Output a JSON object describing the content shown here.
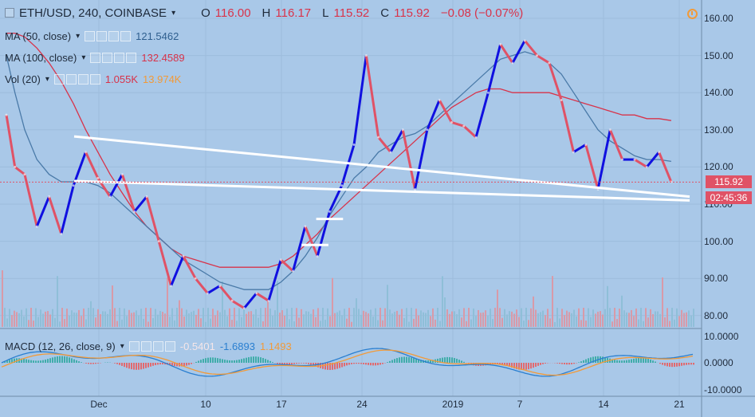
{
  "header": {
    "symbol": "ETH/USD, 240, COINBASE",
    "open_label": "O",
    "open": "116.00",
    "high_label": "H",
    "high": "116.17",
    "low_label": "L",
    "low": "115.52",
    "close_label": "C",
    "close": "115.92",
    "change": "−0.08 (−0.07%)"
  },
  "indicators": {
    "ma50": {
      "label": "MA (50, close)",
      "value": "121.5462",
      "color": "#4a7aa8"
    },
    "ma100": {
      "label": "MA (100, close)",
      "value": "132.4589",
      "color": "#d8334a"
    },
    "vol": {
      "label": "Vol (20)",
      "value1": "1.055K",
      "value2": "13.974K",
      "color1": "#d8334a",
      "color2": "#f29a38"
    },
    "macd": {
      "label": "MACD (12, 26, close, 9)",
      "value1": "-0.5401",
      "value2": "-1.6893",
      "value3": "1.1493",
      "color1": "#f5e6e8",
      "color2": "#2a7fd0",
      "color3": "#f29a38"
    }
  },
  "price_axis": [
    "160.00",
    "150.00",
    "140.00",
    "130.00",
    "120.00",
    "110.00",
    "100.00",
    "90.00",
    "80.00"
  ],
  "macd_axis": [
    "10.0000",
    "0.0000",
    "-10.0000"
  ],
  "current_price": "115.92",
  "countdown": "02:45:36",
  "time_axis": [
    "Dec",
    "10",
    "17",
    "24",
    "2019",
    "7",
    "14",
    "21"
  ],
  "colors": {
    "background": "#a9c8e8",
    "up": "#1010e0",
    "down": "#e05266",
    "trendline": "#ffffff"
  },
  "chart_data": {
    "type": "line",
    "ylim": [
      78,
      163
    ],
    "x": [
      0,
      0.7,
      1.5,
      2.5,
      3.5,
      4.5,
      5.5,
      6.5,
      7.5,
      8.5,
      9.5,
      10.5,
      11.5,
      12.5,
      13.5,
      14.5,
      15.5,
      16.5,
      17.5,
      18.5,
      19.5,
      20.5,
      21.5,
      22.5,
      23.5,
      24.5,
      25.5,
      26.5,
      27.5,
      28.5,
      29.5,
      30.5,
      31.5,
      32.5,
      33.5,
      34.5,
      35.5,
      36.5,
      37.5,
      38.5,
      39.5,
      40.5,
      41.5,
      42.5,
      43.5,
      44.5,
      45.5,
      46.5,
      47.5,
      48.5,
      49.5,
      50.5,
      51.5,
      52.5,
      53.5,
      54.5
    ],
    "series": [
      {
        "name": "ETH/USD",
        "values": [
          134,
          120,
          118,
          104,
          112,
          102,
          115,
          124,
          117,
          112,
          118,
          108,
          112,
          100,
          88,
          96,
          90,
          86,
          88,
          84,
          82,
          86,
          84,
          95,
          92,
          104,
          96,
          108,
          115,
          126,
          150,
          128,
          124,
          130,
          114,
          130,
          138,
          132,
          131,
          128,
          140,
          153,
          148,
          154,
          150,
          148,
          138,
          124,
          126,
          114,
          130,
          122,
          122,
          120,
          124,
          116
        ]
      },
      {
        "name": "MA (50, close)",
        "values": [
          150,
          140,
          130,
          122,
          118,
          116,
          116,
          116,
          115,
          113,
          110,
          107,
          104,
          101,
          98,
          95,
          93,
          91,
          89,
          88,
          87,
          87,
          87,
          89,
          92,
          96,
          101,
          107,
          112,
          117,
          120,
          124,
          126,
          128,
          129,
          131,
          134,
          137,
          140,
          143,
          146,
          149,
          150,
          151,
          150,
          148,
          145,
          140,
          135,
          130,
          127,
          125,
          123,
          122,
          122,
          121.5
        ]
      },
      {
        "name": "MA (100, close)",
        "values": [
          156,
          156,
          155,
          152,
          148,
          143,
          137,
          130,
          124,
          118,
          113,
          108,
          104,
          101,
          98,
          96,
          95,
          94,
          93,
          93,
          93,
          93,
          93,
          94,
          96,
          99,
          102,
          106,
          109,
          112,
          115,
          118,
          121,
          124,
          127,
          130,
          133,
          136,
          138,
          140,
          141,
          141,
          140,
          140,
          140,
          140,
          139,
          138,
          137,
          136,
          135,
          134,
          134,
          133,
          133,
          132.5
        ]
      }
    ],
    "trendlines": [
      {
        "from": [
          0,
          125
        ],
        "to": [
          54.5,
          112
        ]
      },
      {
        "from": [
          0,
          113
        ],
        "to": [
          54.5,
          111
        ]
      }
    ],
    "levels": [
      {
        "price": 106,
        "x": [
          25.4,
          27.6
        ]
      },
      {
        "price": 99,
        "x": [
          24.2,
          26.4
        ]
      }
    ]
  }
}
